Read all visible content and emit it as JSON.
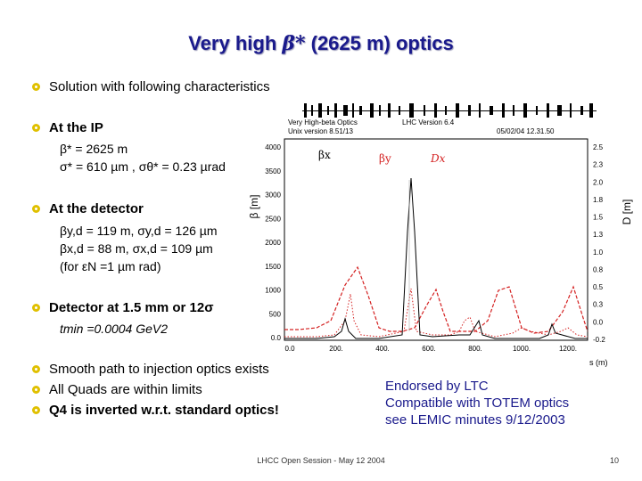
{
  "title": {
    "prefix": "Very high ",
    "beta": "β*",
    "suffix": " (2625 m) optics"
  },
  "bullets": {
    "solution": "Solution with following characteristics",
    "at_ip": "At the IP",
    "ip_line1": "β* = 2625 m",
    "ip_line2": "σ* = 610 µm ,  σθ* = 0.23 µrad",
    "at_detector": "At the detector",
    "det_line1": "βy,d = 119 m,  σy,d = 126 µm",
    "det_line2": "βx,d = 88 m,  σx,d = 109 µm",
    "det_line3": "(for εN =1 µm rad)",
    "detector_at": "Detector at 1.5 mm or 12σ",
    "tmin": "tmin =0.0004 GeV2",
    "smooth": "Smooth path to injection optics exists",
    "quads": "All Quads are within limits",
    "q4": "Q4 is inverted w.r.t. standard optics!"
  },
  "endorsement": {
    "line1": "Endorsed by LTC",
    "line2": "Compatible with TOTEM optics",
    "line3": "see LEMIC minutes 9/12/2003"
  },
  "plot": {
    "header_left1": "Very High-beta Optics",
    "header_left2": "Unix version 8.51/13",
    "header_mid": "LHC Version 6.4",
    "header_right": "05/02/04  12.31.50",
    "legend": [
      "βx",
      "βy",
      "Dx"
    ],
    "y_left_label": "β [m]",
    "y_right_label": "D [m]",
    "x_label": "s (m)",
    "y_left_ticks": [
      "4000",
      "3500",
      "3000",
      "2500",
      "2000",
      "1500",
      "1000",
      "500",
      "0.0"
    ],
    "y_right_ticks": [
      "2.5",
      "2.3",
      "2.0",
      "1.8",
      "1.5",
      "1.3",
      "1.0",
      "0.8",
      "0.5",
      "0.3",
      "0.0",
      "-0.2"
    ],
    "x_ticks": [
      "0.0",
      "200.",
      "400.",
      "600.",
      "800.",
      "1000.",
      "1200."
    ],
    "colors": {
      "betax": "#000000",
      "betay": "#d42020",
      "dx": "#d42020",
      "frame": "#000000"
    }
  },
  "footer": "LHCC Open Session - May 12 2004",
  "page_number": "10"
}
